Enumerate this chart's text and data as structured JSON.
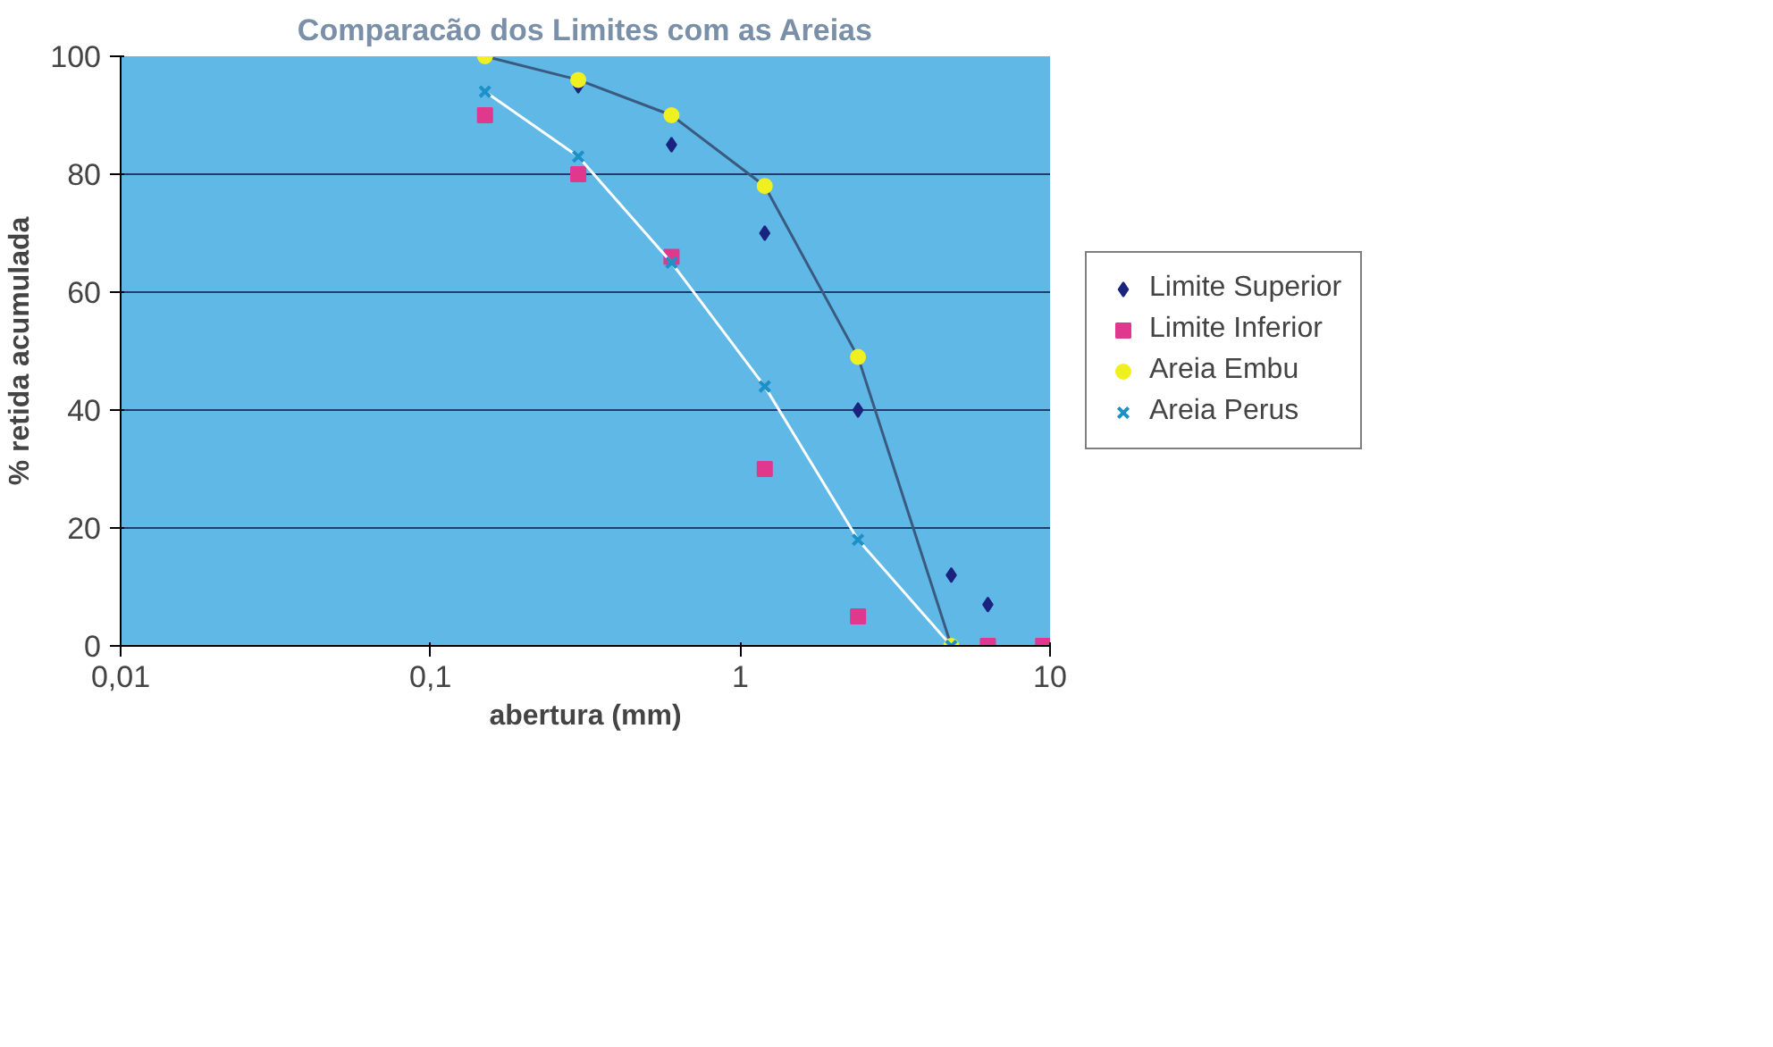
{
  "chart_data": {
    "type": "scatter",
    "title": "Comparacão dos Limites com as Areias",
    "xlabel": "abertura (mm)",
    "ylabel": "% retida acumulada",
    "log": "x",
    "xlim": [
      0.01,
      10
    ],
    "ylim": [
      0,
      100
    ],
    "xticks": [
      {
        "value": 0.01,
        "label": "0,01"
      },
      {
        "value": 0.1,
        "label": "0,1"
      },
      1,
      10
    ],
    "yticks": [
      0,
      20,
      40,
      60,
      80,
      100
    ],
    "grid": "y",
    "legend": "right",
    "series": [
      {
        "name": "Limite Superior",
        "marker": "diamond",
        "color": "#1a237e",
        "x": [
          0.3,
          0.6,
          1.2,
          2.4,
          4.8,
          6.3
        ],
        "values": [
          95,
          85,
          70,
          40,
          12,
          7
        ]
      },
      {
        "name": "Limite Inferior",
        "marker": "square",
        "color": "#e0388c",
        "x": [
          0.15,
          0.3,
          0.6,
          1.2,
          2.4,
          6.3,
          9.5
        ],
        "values": [
          90,
          80,
          66,
          30,
          5,
          0,
          0
        ]
      },
      {
        "type": "line",
        "marker": "none",
        "color": "#3a5a80",
        "x": [
          0.15,
          0.3,
          0.6,
          1.2,
          2.4,
          4.8
        ],
        "values": [
          100,
          96,
          90,
          78,
          49,
          0
        ]
      },
      {
        "type": "line",
        "marker": "none",
        "color": "#ffffff",
        "x": [
          0.15,
          0.3,
          0.6,
          1.2,
          2.4,
          4.8
        ],
        "values": [
          94,
          83,
          65,
          44,
          18,
          0
        ]
      },
      {
        "name": "Areia Embu",
        "marker": "circle",
        "color": "#f0f020",
        "x": [
          0.15,
          0.3,
          0.6,
          1.2,
          2.4,
          4.8
        ],
        "values": [
          100,
          96,
          90,
          78,
          49,
          0
        ]
      },
      {
        "name": "Areia Perus",
        "marker": "cross",
        "color": "#1e90c8",
        "x": [
          0.15,
          0.3,
          0.6,
          1.2,
          2.4,
          4.8
        ],
        "values": [
          94,
          83,
          65,
          44,
          18,
          0
        ]
      }
    ]
  }
}
